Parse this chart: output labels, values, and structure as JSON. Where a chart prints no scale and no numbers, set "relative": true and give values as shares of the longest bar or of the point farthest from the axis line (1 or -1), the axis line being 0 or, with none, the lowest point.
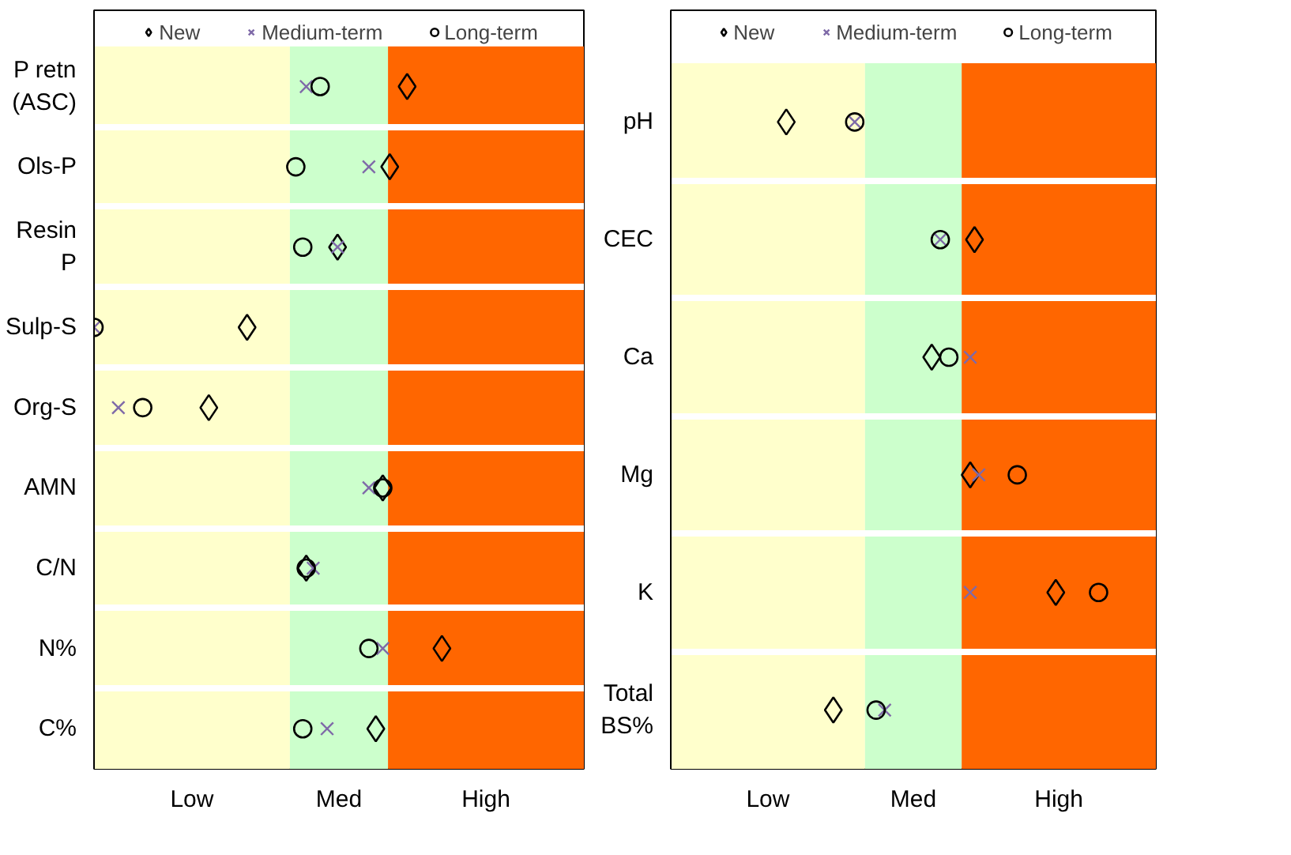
{
  "chart_data": [
    {
      "type": "scatter",
      "orientation": "horizontal",
      "relative": true,
      "categories": [
        "P retn\n(ASC)",
        "Ols-P",
        "Resin\nP",
        "Sulp-S",
        "Org-S",
        "AMN",
        "C/N",
        "N%",
        "C%"
      ],
      "series": [
        {
          "name": "New",
          "color": "#000000",
          "marker": "diamond",
          "values": [
            0.9,
            0.85,
            0.7,
            0.44,
            0.33,
            0.83,
            0.61,
            1,
            0.81
          ]
        },
        {
          "name": "Medium-term",
          "color": "#7f6aa8",
          "marker": "cross",
          "values": [
            0.61,
            0.79,
            0.7,
            0,
            0.07,
            0.79,
            0.63,
            0.83,
            0.67
          ]
        },
        {
          "name": "Long-term",
          "color": "#000000",
          "marker": "circle",
          "values": [
            0.65,
            0.58,
            0.6,
            0,
            0.14,
            0.83,
            0.61,
            0.79,
            0.6
          ]
        }
      ],
      "bands": [
        {
          "axis": "x",
          "from": 0,
          "to": 0.563,
          "label": "Low",
          "color": "#ffffcc"
        },
        {
          "axis": "x",
          "from": 0.563,
          "to": 0.845,
          "label": "Med",
          "color": "#ccffcc"
        },
        {
          "axis": "x",
          "from": 0.845,
          "to": 1.408,
          "label": "High",
          "color": "#ff6600"
        }
      ],
      "legend": "top"
    },
    {
      "type": "scatter",
      "orientation": "horizontal",
      "relative": true,
      "categories": [
        "pH",
        "CEC",
        "Ca",
        "Mg",
        "K",
        "Total\nBS%"
      ],
      "series": [
        {
          "name": "New",
          "color": "#000000",
          "marker": "diamond",
          "values": [
            0.27,
            0.71,
            0.61,
            0.7,
            0.9,
            0.38
          ]
        },
        {
          "name": "Medium-term",
          "color": "#7f6aa8",
          "marker": "cross",
          "values": [
            0.43,
            0.63,
            0.7,
            0.72,
            0.7,
            0.5
          ]
        },
        {
          "name": "Long-term",
          "color": "#000000",
          "marker": "circle",
          "values": [
            0.43,
            0.63,
            0.65,
            0.81,
            1,
            0.48
          ]
        }
      ],
      "bands": [
        {
          "axis": "x",
          "from": 0,
          "to": 0.454,
          "label": "Low",
          "color": "#ffffcc"
        },
        {
          "axis": "x",
          "from": 0.454,
          "to": 0.68,
          "label": "Med",
          "color": "#ccffcc"
        },
        {
          "axis": "x",
          "from": 0.68,
          "to": 1.134,
          "label": "High",
          "color": "#ff6600"
        }
      ],
      "legend": "top"
    }
  ]
}
